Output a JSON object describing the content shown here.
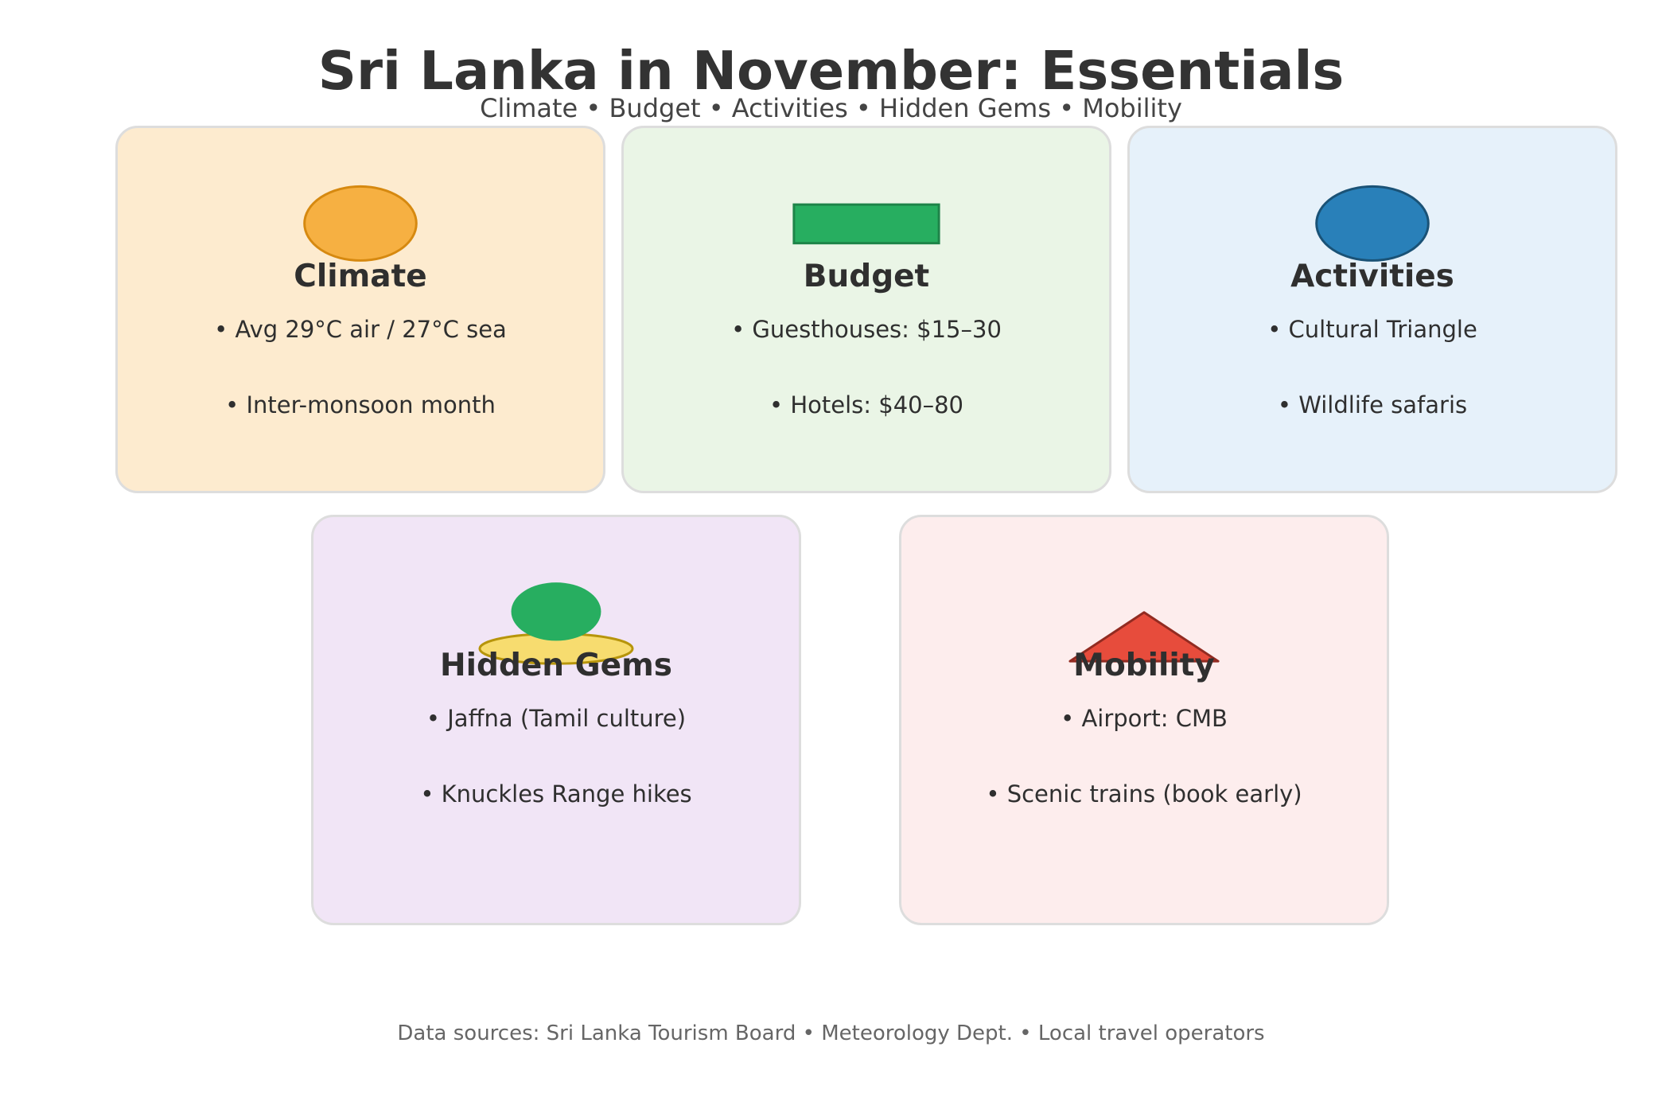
{
  "header": {
    "title": "Sri Lanka in November: Essentials",
    "subtitle": "Climate • Budget • Activities • Hidden Gems • Mobility"
  },
  "cards": [
    {
      "id": "climate",
      "title": "Climate",
      "icon": "sun-circle-icon",
      "background": "#fdebcf",
      "icon_fill": "#f6b042",
      "icon_stroke": "#d68910",
      "items": [
        "• Avg 29°C air / 27°C sea",
        "• Inter-monsoon month"
      ]
    },
    {
      "id": "budget",
      "title": "Budget",
      "icon": "banknote-icon",
      "background": "#eaf5e6",
      "icon_fill": "#27ae60",
      "icon_stroke": "#1e8449",
      "items": [
        "• Guesthouses: $15–30",
        "• Hotels: $40–80"
      ]
    },
    {
      "id": "activities",
      "title": "Activities",
      "icon": "blue-circle-icon",
      "background": "#e6f1fa",
      "icon_fill": "#2980b9",
      "icon_stroke": "#1a5276",
      "items": [
        "• Cultural Triangle",
        "• Wildlife safaris"
      ]
    },
    {
      "id": "gems",
      "title": "Hidden Gems",
      "icon": "island-tree-icon",
      "background": "#f1e5f6",
      "icon_fill": "#27ae60",
      "icon_sand_fill": "#f7dc6f",
      "icon_sand_stroke": "#b7950b",
      "items": [
        "• Jaffna (Tamil culture)",
        "• Knuckles Range hikes"
      ]
    },
    {
      "id": "mobility",
      "title": "Mobility",
      "icon": "triangle-icon",
      "background": "#fdeded",
      "icon_fill": "#e74c3c",
      "icon_stroke": "#922b21",
      "items": [
        "• Airport: CMB",
        "• Scenic trains (book early)"
      ]
    }
  ],
  "footer": {
    "text": "Data sources: Sri Lanka Tourism Board • Meteorology Dept. • Local travel operators"
  }
}
